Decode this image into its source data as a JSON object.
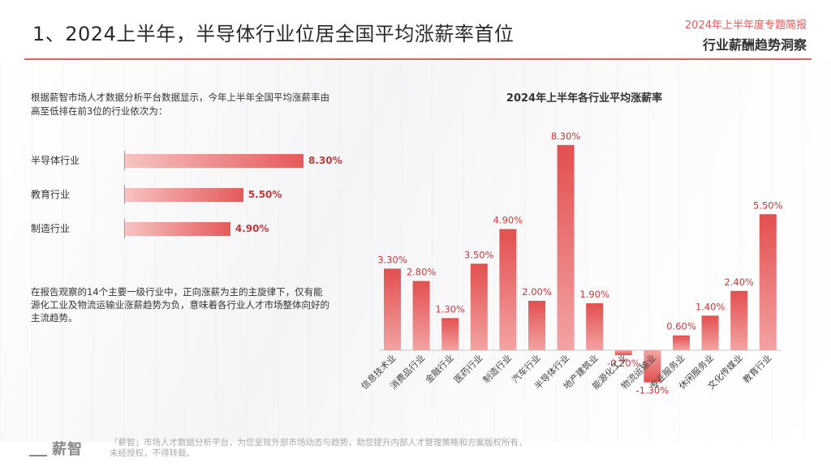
{
  "header": {
    "title": "1、2024上半年，半导体行业位居全国平均涨薪率首位",
    "report_tag": "2024年上半年度专题简报",
    "report_sub": "行业薪酬趋势洞察"
  },
  "intro_text": "根据薪智市场人才数据分析平台数据显示，今年上半年全国平均涨薪率由高至低排在前3位的行业依次为：",
  "top3": [
    {
      "label": "半导体行业",
      "value": 8.3,
      "display": "8.30%"
    },
    {
      "label": "教育行业",
      "value": 5.5,
      "display": "5.50%"
    },
    {
      "label": "制造行业",
      "value": 4.9,
      "display": "4.90%"
    }
  ],
  "summary_text": "在报告观察的14个主要一级行业中，正向涨薪为主的主旋律下，仅有能源化工业及物流运输业涨薪趋势为负，意味着各行业人才市场整体向好的主流趋势。",
  "chart_data": {
    "type": "bar",
    "title": "2024年上半年各行业平均涨薪率",
    "categories": [
      "信息技术业",
      "消费品行业",
      "金融行业",
      "医药行业",
      "制造行业",
      "汽车行业",
      "半导体行业",
      "地产建筑业",
      "能源化工业",
      "物流运输业",
      "专业服务业",
      "休闲服务业",
      "文化传媒业",
      "教育行业"
    ],
    "values": [
      3.3,
      2.8,
      1.3,
      3.5,
      4.9,
      2.0,
      8.3,
      1.9,
      -0.2,
      -1.3,
      0.6,
      1.4,
      2.4,
      5.5
    ],
    "labels": [
      "3.30%",
      "2.80%",
      "1.30%",
      "3.50%",
      "4.90%",
      "2.00%",
      "8.30%",
      "1.90%",
      "-0.20%",
      "-1.30%",
      "0.60%",
      "1.40%",
      "2.40%",
      "5.50%"
    ],
    "xlabel": "",
    "ylabel": "",
    "ylim": [
      -1.3,
      8.3
    ],
    "grid": false,
    "color": "#e55a5a"
  },
  "footer": {
    "logo": "薪智",
    "text": "「薪智」市场人才数据分析平台，为您呈现外部市场动态与趋势，助您提升内部人才管理策略和方案版权所有，未经授权，不得转载。"
  }
}
